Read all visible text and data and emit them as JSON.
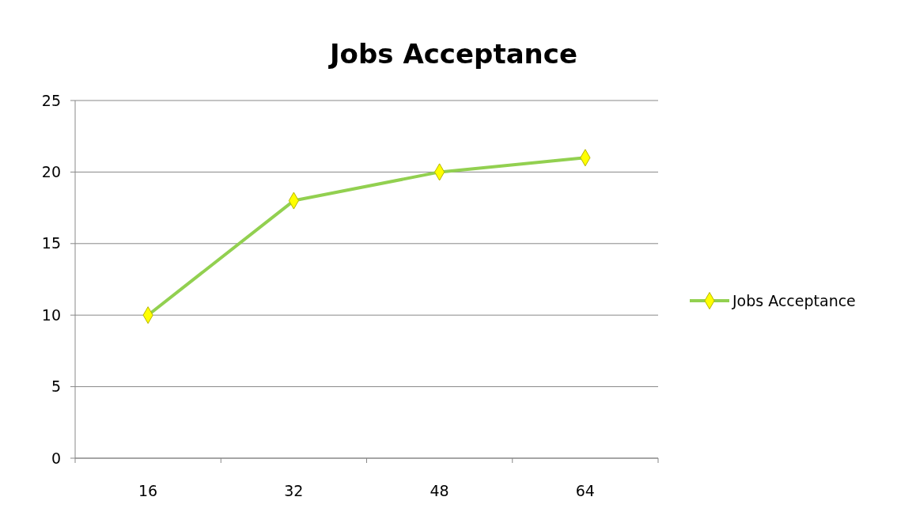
{
  "chart_data": {
    "type": "line",
    "title": "Jobs Acceptance",
    "categories": [
      "16",
      "32",
      "48",
      "64"
    ],
    "series": [
      {
        "name": "Jobs Acceptance",
        "color": "#92d050",
        "values": [
          10,
          18,
          20,
          21
        ]
      }
    ],
    "ylim": [
      0,
      25
    ],
    "yticks": [
      0,
      5,
      10,
      15,
      20,
      25
    ],
    "grid": "y",
    "legend": "right",
    "marker": "diamond"
  }
}
